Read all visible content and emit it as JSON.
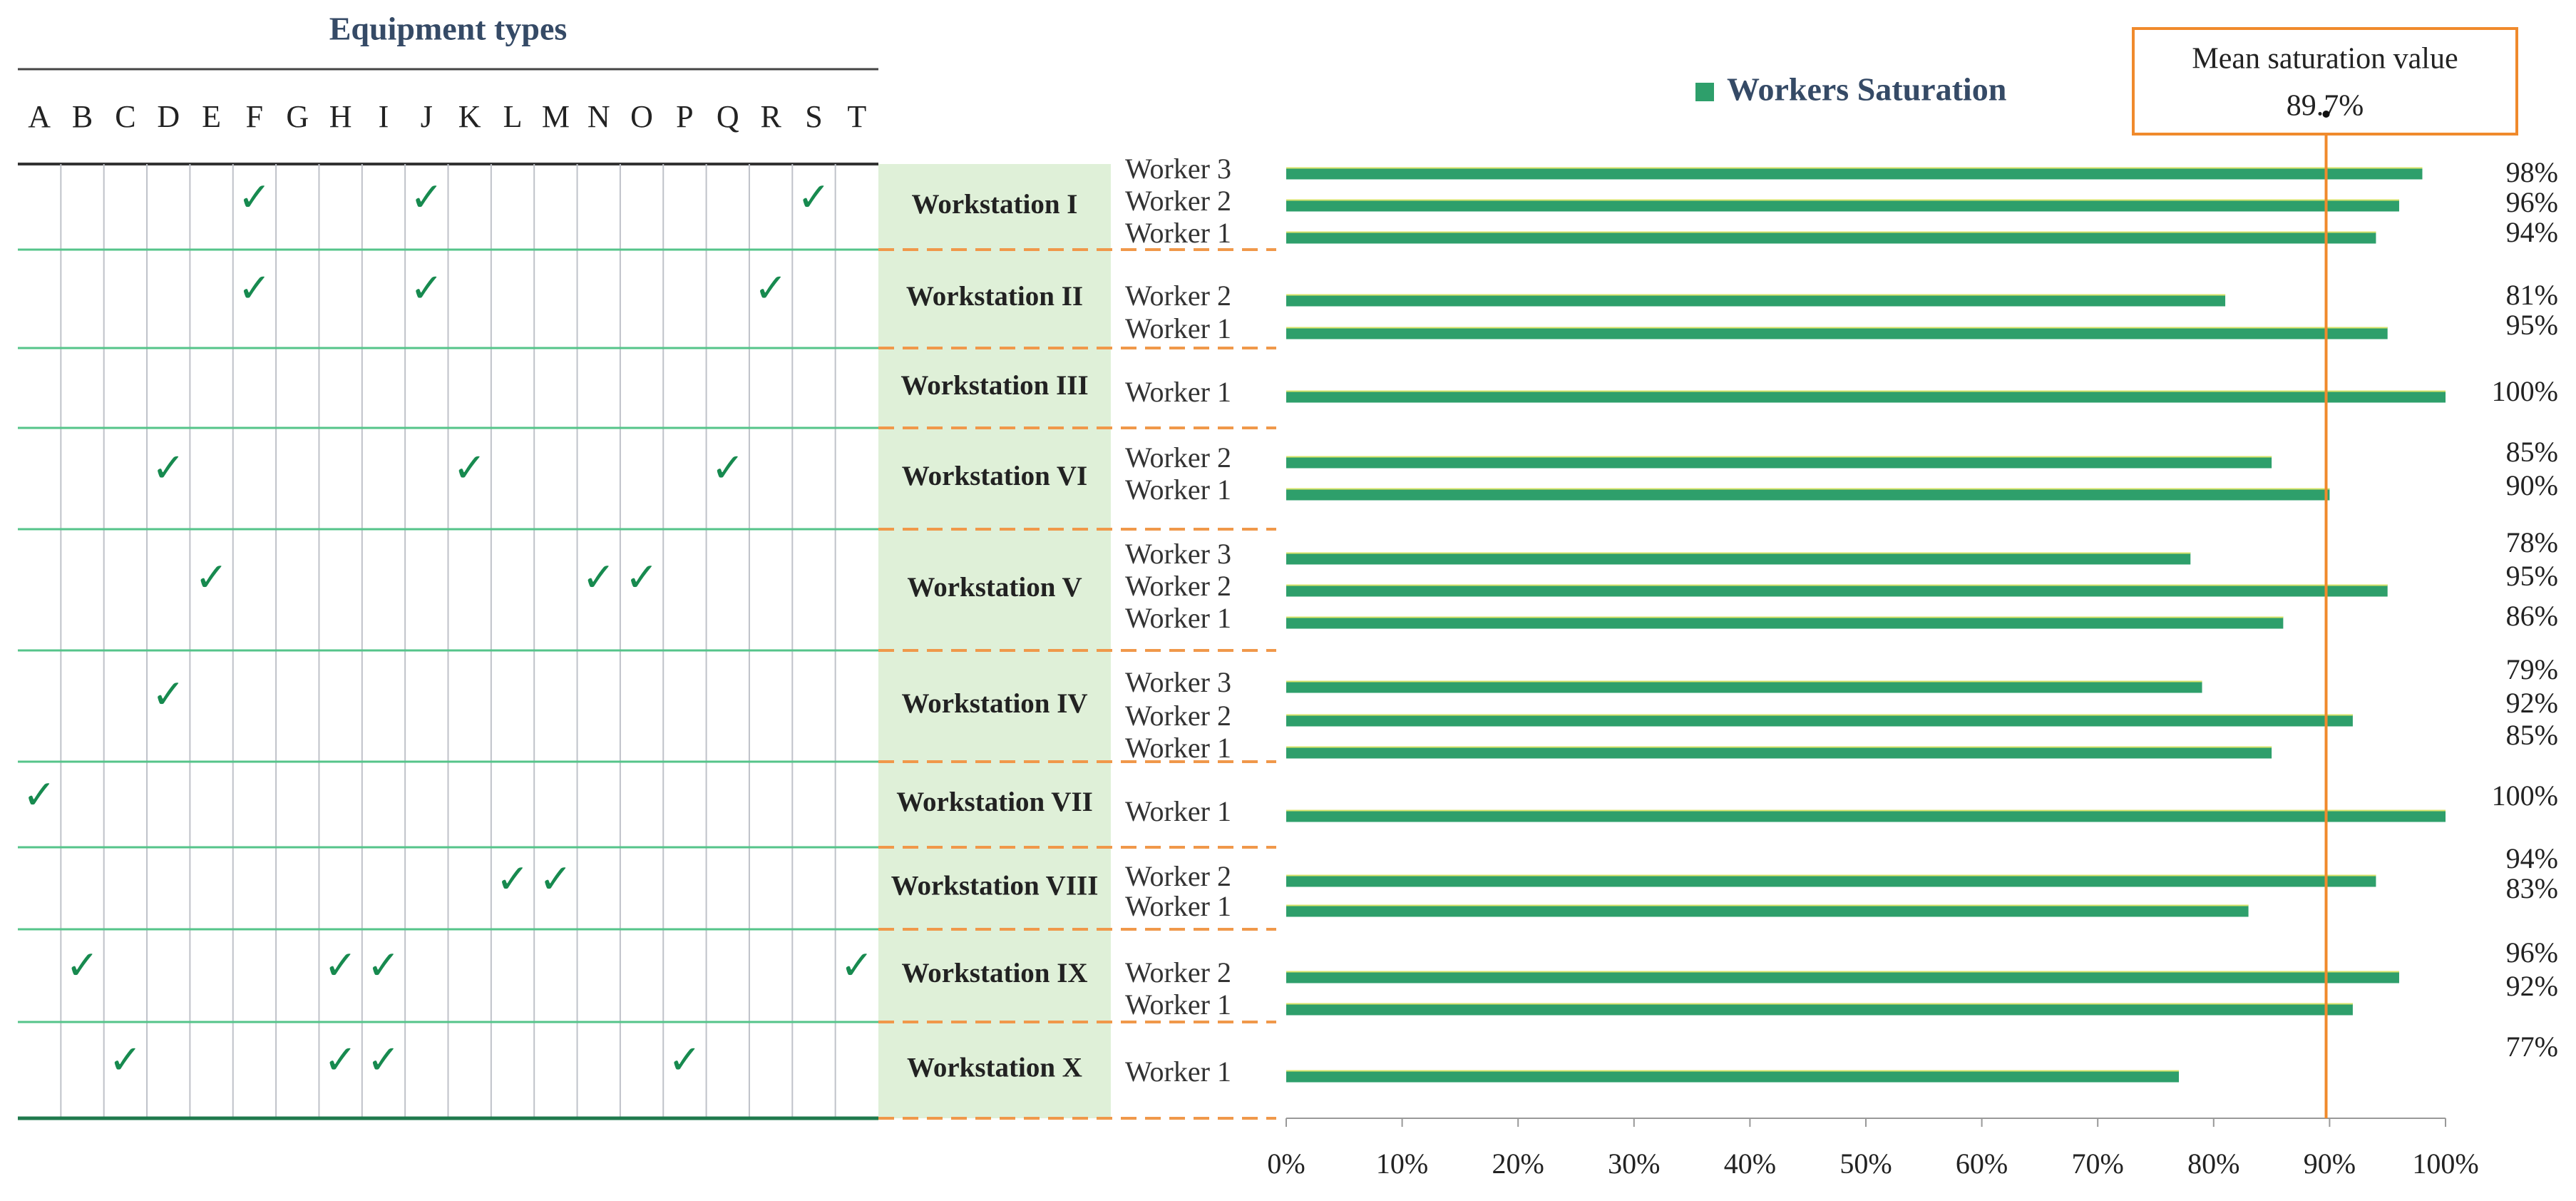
{
  "matrix": {
    "header": "Equipment types",
    "equipment": [
      "A",
      "B",
      "C",
      "D",
      "E",
      "F",
      "G",
      "H",
      "I",
      "J",
      "K",
      "L",
      "M",
      "N",
      "O",
      "P",
      "Q",
      "R",
      "S",
      "T"
    ],
    "check_glyph": "✓",
    "rows": [
      {
        "workstation": "Workstation I",
        "checks": [
          "F",
          "J",
          "S"
        ]
      },
      {
        "workstation": "Workstation II",
        "checks": [
          "F",
          "J",
          "R"
        ]
      },
      {
        "workstation": "Workstation III",
        "checks": []
      },
      {
        "workstation": "Workstation VI",
        "checks": [
          "D",
          "K",
          "Q"
        ]
      },
      {
        "workstation": "Workstation V",
        "checks": [
          "E",
          "N",
          "O"
        ]
      },
      {
        "workstation": "Workstation IV",
        "checks": [
          "D"
        ]
      },
      {
        "workstation": "Workstation VII",
        "checks": [
          "A"
        ]
      },
      {
        "workstation": "Workstation VIII",
        "checks": [
          "L",
          "M"
        ]
      },
      {
        "workstation": "Workstation IX",
        "checks": [
          "B",
          "H",
          "I",
          "T"
        ]
      },
      {
        "workstation": "Workstation X",
        "checks": [
          "C",
          "H",
          "I",
          "P"
        ]
      }
    ]
  },
  "chart_data": {
    "type": "bar",
    "orientation": "horizontal",
    "legend": {
      "label": "Workers Saturation",
      "placement": "top"
    },
    "xlim": [
      0,
      100
    ],
    "x_ticks": [
      "0%",
      "10%",
      "20%",
      "30%",
      "40%",
      "50%",
      "60%",
      "70%",
      "80%",
      "90%",
      "100%"
    ],
    "grid": false,
    "mean_line": {
      "title": "Mean saturation value",
      "label": "89.7%",
      "value": 89.7
    },
    "groups": [
      {
        "workstation": "Workstation I",
        "bars": [
          {
            "worker": "Worker 3",
            "value": 98,
            "label": "98%"
          },
          {
            "worker": "Worker 2",
            "value": 96,
            "label": "96%"
          },
          {
            "worker": "Worker 1",
            "value": 94,
            "label": "94%"
          }
        ]
      },
      {
        "workstation": "Workstation II",
        "bars": [
          {
            "worker": "Worker 2",
            "value": 81,
            "label": "81%"
          },
          {
            "worker": "Worker 1",
            "value": 95,
            "label": "95%"
          }
        ]
      },
      {
        "workstation": "Workstation III",
        "bars": [
          {
            "worker": "Worker 1",
            "value": 100,
            "label": "100%"
          }
        ]
      },
      {
        "workstation": "Workstation VI",
        "bars": [
          {
            "worker": "Worker 2",
            "value": 85,
            "label": "85%"
          },
          {
            "worker": "Worker 1",
            "value": 90,
            "label": "90%"
          }
        ]
      },
      {
        "workstation": "Workstation V",
        "bars": [
          {
            "worker": "Worker 3",
            "value": 78,
            "label": "78%"
          },
          {
            "worker": "Worker 2",
            "value": 95,
            "label": "95%"
          },
          {
            "worker": "Worker 1",
            "value": 86,
            "label": "86%"
          }
        ]
      },
      {
        "workstation": "Workstation IV",
        "bars": [
          {
            "worker": "Worker 3",
            "value": 79,
            "label": "79%"
          },
          {
            "worker": "Worker 2",
            "value": 92,
            "label": "92%"
          },
          {
            "worker": "Worker 1",
            "value": 85,
            "label": "85%"
          }
        ]
      },
      {
        "workstation": "Workstation VII",
        "bars": [
          {
            "worker": "Worker 1",
            "value": 100,
            "label": "100%"
          }
        ]
      },
      {
        "workstation": "Workstation VIII",
        "bars": [
          {
            "worker": "Worker 2",
            "value": 94,
            "label": "94%"
          },
          {
            "worker": "Worker 1",
            "value": 83,
            "label": "83%"
          }
        ]
      },
      {
        "workstation": "Workstation IX",
        "bars": [
          {
            "worker": "Worker 2",
            "value": 96,
            "label": "96%"
          },
          {
            "worker": "Worker 1",
            "value": 92,
            "label": "92%"
          }
        ]
      },
      {
        "workstation": "Workstation X",
        "bars": [
          {
            "worker": "Worker 1",
            "value": 77,
            "label": "77%"
          }
        ]
      }
    ]
  },
  "colors": {
    "bar": "#2e9f6b",
    "bar_highlight": "#d7e36a",
    "check": "#178a4f",
    "row_divider": "#55c48a",
    "grid_vertical": "#bfc2c9",
    "workstation_fill": "#dff0d8",
    "dash": "#f0984a",
    "mean_line": "#f08a2c",
    "header_text": "#354a66",
    "text": "#222222",
    "worker_text": "#333333"
  }
}
